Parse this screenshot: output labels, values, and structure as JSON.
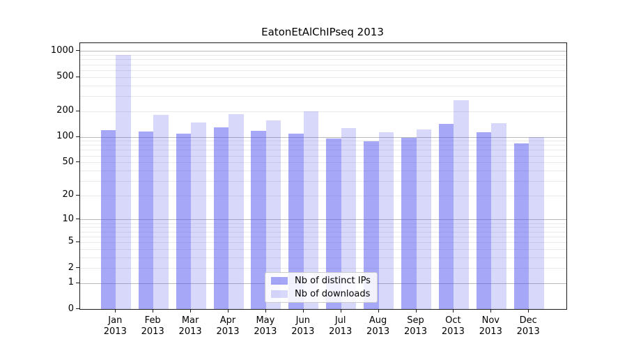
{
  "title": "EatonEtAlChIPseq 2013",
  "chart_data": {
    "type": "bar",
    "title": "EatonEtAlChIPseq 2013",
    "months": [
      "Jan",
      "Feb",
      "Mar",
      "Apr",
      "May",
      "Jun",
      "Jul",
      "Aug",
      "Sep",
      "Oct",
      "Nov",
      "Dec"
    ],
    "year": "2013",
    "series": [
      {
        "name": "Nb of distinct IPs",
        "color": "rgba(80, 80, 240, 0.5)",
        "values": [
          119,
          115,
          109,
          130,
          118,
          108,
          95,
          88,
          97,
          142,
          113,
          84
        ]
      },
      {
        "name": "Nb of downloads",
        "color": "rgba(100, 100, 235, 0.25)",
        "values": [
          905,
          181,
          147,
          185,
          156,
          199,
          127,
          113,
          123,
          269,
          145,
          99
        ]
      }
    ],
    "y_ticks": [
      1000,
      500,
      200,
      100,
      50,
      20,
      10,
      5,
      2,
      1,
      0
    ],
    "y_scale": "log10(value+1)",
    "ylim": [
      0,
      1240
    ],
    "xlabel": "",
    "ylabel": "",
    "grid": "horizontal major and minor",
    "legend_position": "lower center"
  },
  "colors": {
    "major_grid": "#b9b9b9",
    "minor_grid": "#e9e9e9",
    "spine": "#1a1a1a",
    "text": "#000000",
    "legend_border": "#cccccc"
  }
}
